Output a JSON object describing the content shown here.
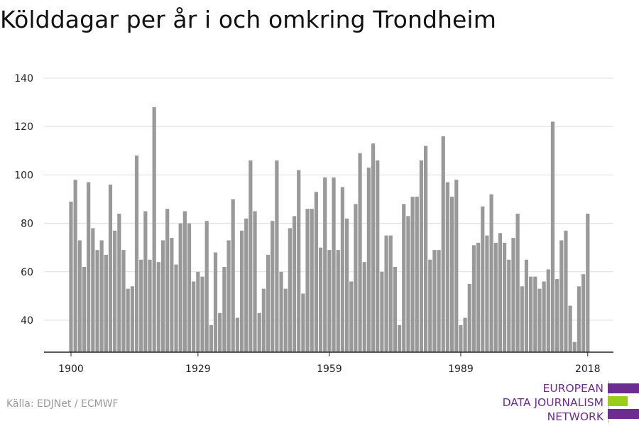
{
  "title": "Kölddagar per år i och omkring Trondheim",
  "source": "Källa: EDJNet / ECMWF",
  "logo": {
    "lines": [
      "EUROPEAN",
      "DATA JOURNALISM",
      "NETWORK"
    ],
    "colors": {
      "purple": "#6b2d8f",
      "green": "#9ccc1a"
    }
  },
  "chart_data": {
    "type": "bar",
    "title": "Kölddagar per år i och omkring Trondheim",
    "xlabel": "",
    "ylabel": "",
    "x_ticks": [
      "1900",
      "1929",
      "1959",
      "1989",
      "2018"
    ],
    "y_ticks": [
      "40",
      "60",
      "80",
      "100",
      "120",
      "140"
    ],
    "ylim": [
      27,
      140
    ],
    "grid": true,
    "bar_color": "#999999",
    "x": [
      1900,
      1901,
      1902,
      1903,
      1904,
      1905,
      1906,
      1907,
      1908,
      1909,
      1910,
      1911,
      1912,
      1913,
      1914,
      1915,
      1916,
      1917,
      1918,
      1919,
      1920,
      1921,
      1922,
      1923,
      1924,
      1925,
      1926,
      1927,
      1928,
      1929,
      1930,
      1931,
      1932,
      1933,
      1934,
      1935,
      1936,
      1937,
      1938,
      1939,
      1940,
      1941,
      1942,
      1943,
      1944,
      1945,
      1946,
      1947,
      1948,
      1949,
      1950,
      1951,
      1952,
      1953,
      1954,
      1955,
      1956,
      1957,
      1958,
      1959,
      1960,
      1961,
      1962,
      1963,
      1964,
      1965,
      1966,
      1967,
      1968,
      1969,
      1970,
      1971,
      1972,
      1973,
      1974,
      1975,
      1976,
      1977,
      1978,
      1979,
      1980,
      1981,
      1982,
      1983,
      1984,
      1985,
      1986,
      1987,
      1988,
      1989,
      1990,
      1991,
      1992,
      1993,
      1994,
      1995,
      1996,
      1997,
      1998,
      1999,
      2000,
      2001,
      2002,
      2003,
      2004,
      2005,
      2006,
      2007,
      2008,
      2009,
      2010,
      2011,
      2012,
      2013,
      2014,
      2015,
      2016,
      2017,
      2018
    ],
    "values": [
      89,
      98,
      73,
      62,
      97,
      78,
      69,
      73,
      67,
      96,
      77,
      84,
      69,
      53,
      54,
      108,
      65,
      85,
      65,
      128,
      64,
      73,
      86,
      74,
      63,
      80,
      85,
      80,
      56,
      60,
      58,
      81,
      38,
      68,
      43,
      62,
      73,
      90,
      41,
      77,
      82,
      106,
      85,
      43,
      53,
      67,
      81,
      106,
      60,
      53,
      78,
      83,
      102,
      51,
      86,
      86,
      93,
      70,
      99,
      69,
      99,
      69,
      95,
      82,
      56,
      88,
      109,
      64,
      103,
      113,
      106,
      60,
      75,
      75,
      62,
      38,
      88,
      83,
      91,
      91,
      106,
      112,
      65,
      69,
      69,
      116,
      97,
      91,
      98,
      38,
      41,
      55,
      71,
      72,
      87,
      75,
      92,
      72,
      76,
      72,
      65,
      74,
      84,
      54,
      65,
      58,
      58,
      53,
      56,
      61,
      122,
      57,
      73,
      77,
      46,
      31,
      54,
      59,
      84
    ]
  }
}
